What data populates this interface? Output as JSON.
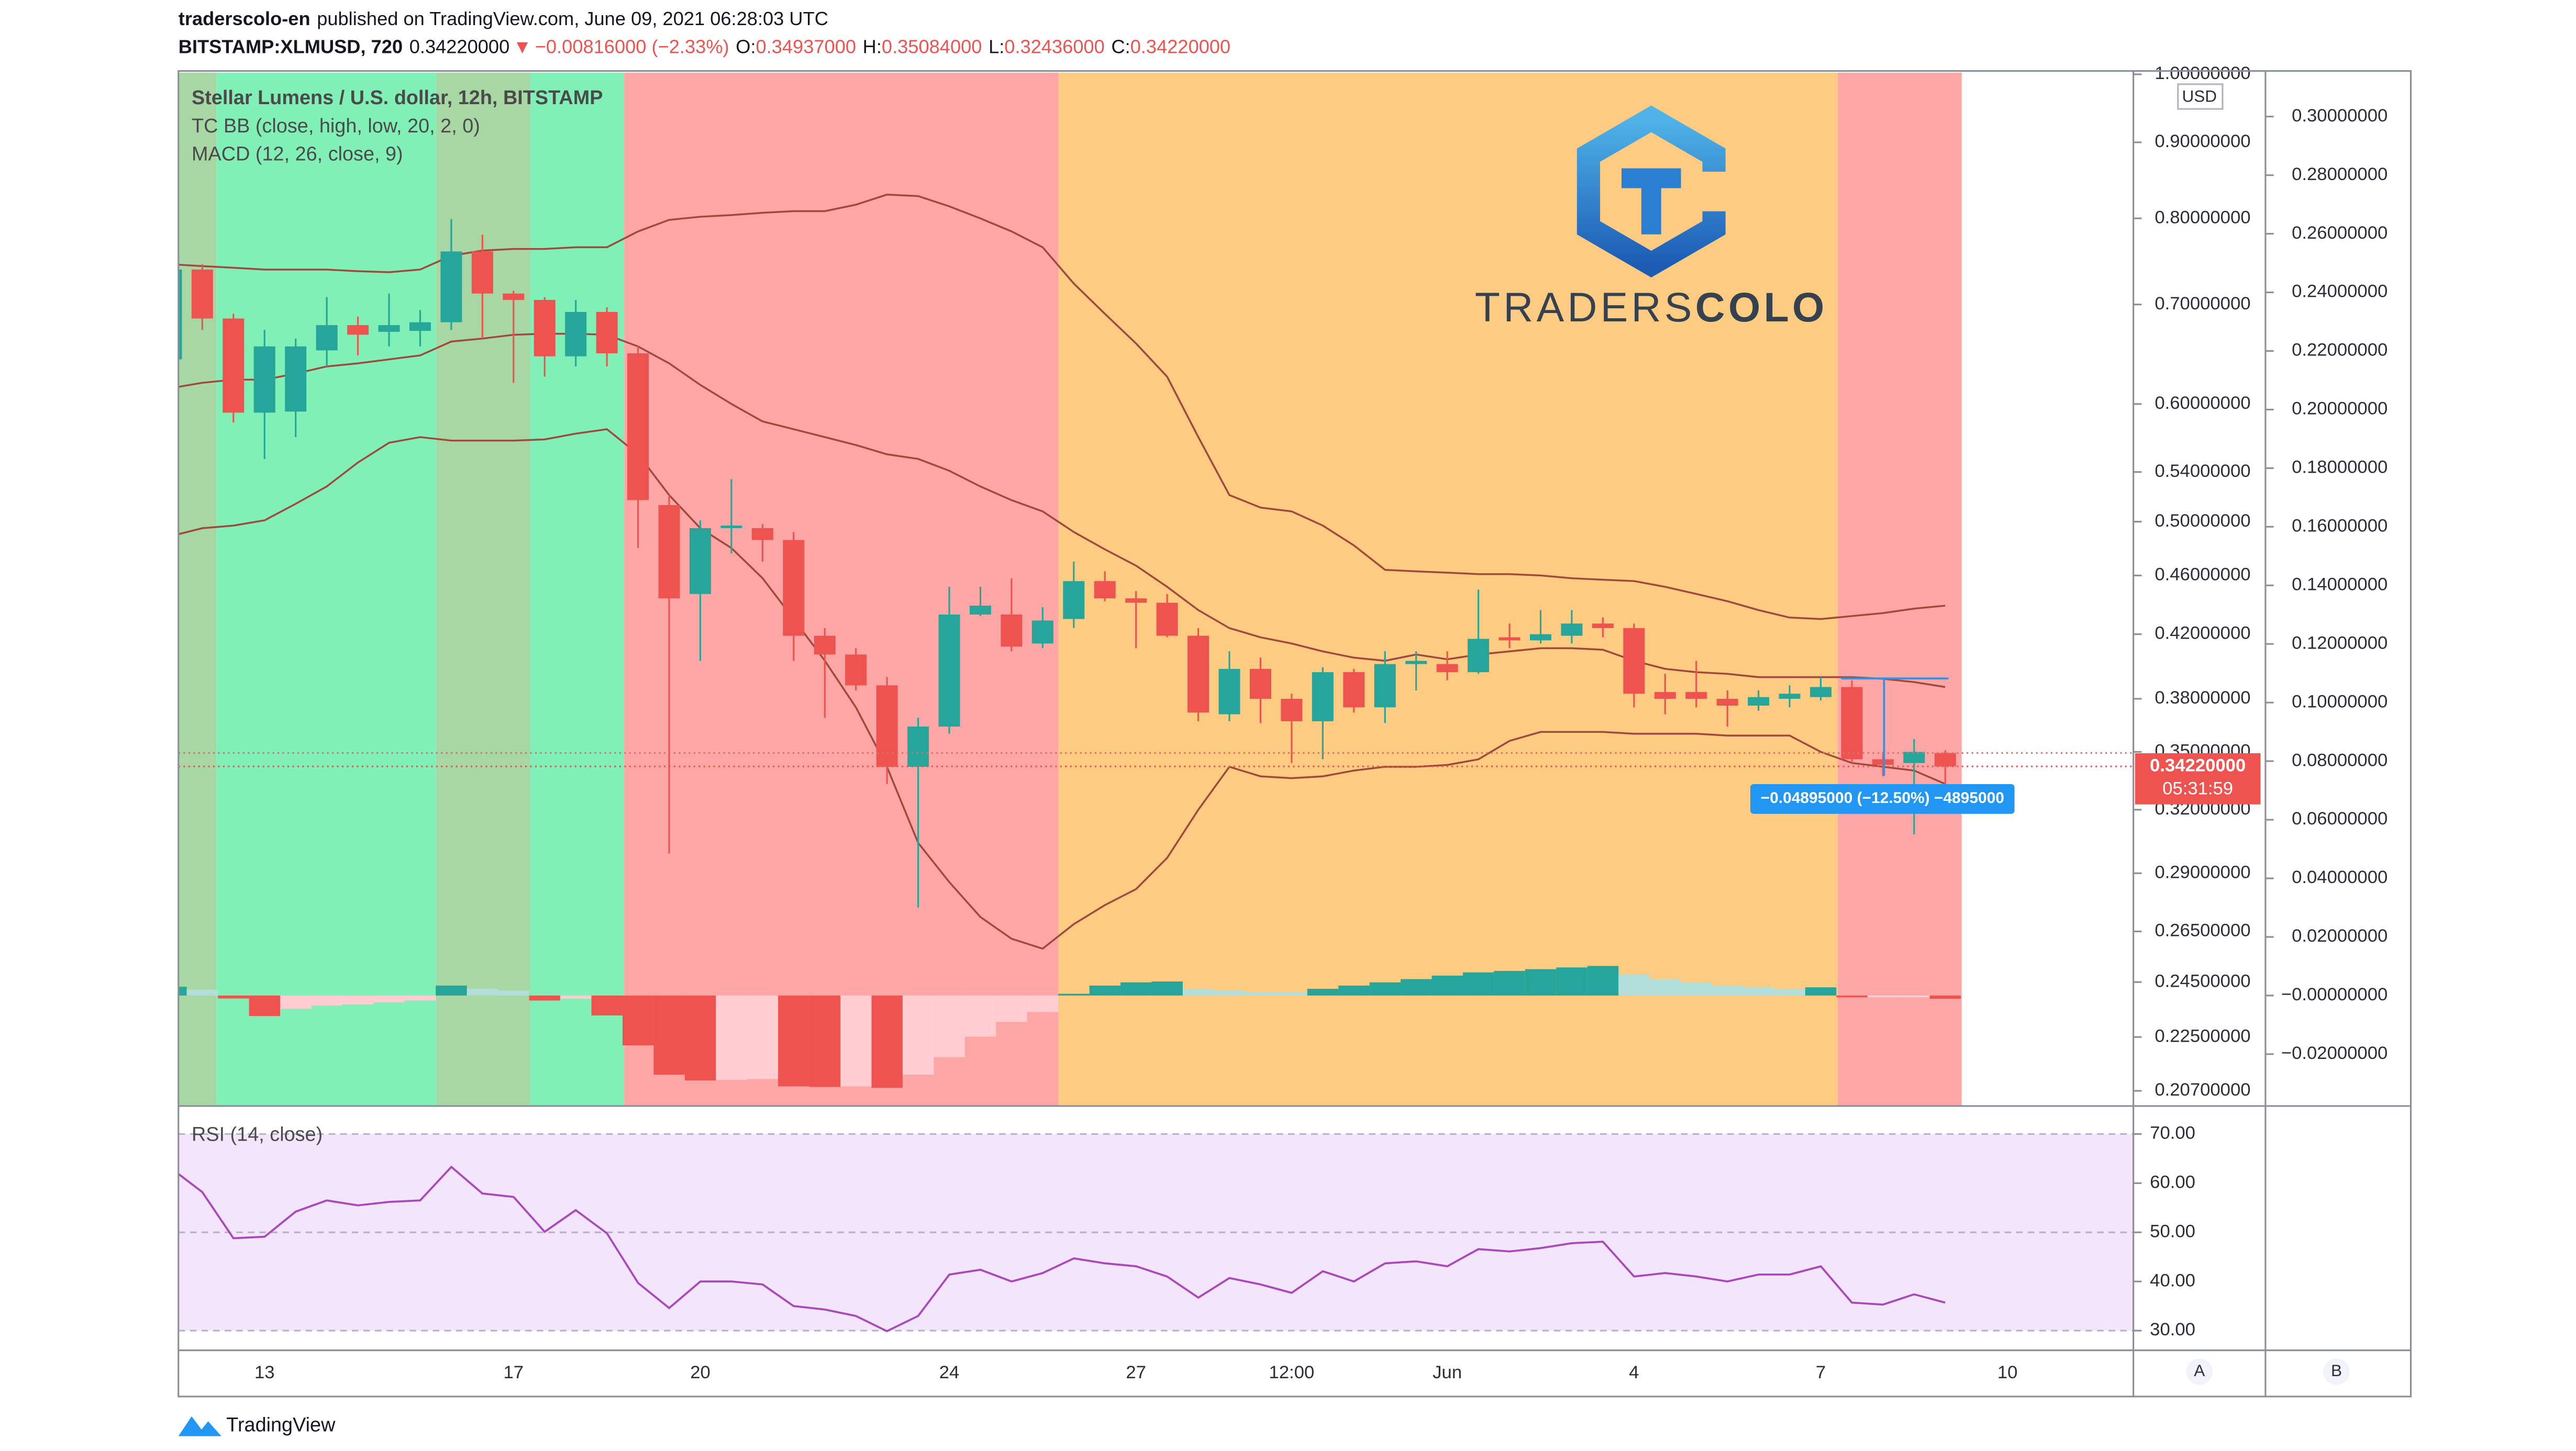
{
  "header": {
    "author": "traderscolo-en",
    "published": "published on TradingView.com, June 09, 2021 06:28:03 UTC",
    "symbol": "BITSTAMP:XLMUSD, 720",
    "last": "0.34220000",
    "arrow": "▼",
    "change": "−0.00816000 (−2.33%)",
    "ohlc": [
      {
        "key": "O:",
        "value": "0.34937000"
      },
      {
        "key": "H:",
        "value": "0.35084000"
      },
      {
        "key": "L:",
        "value": "0.32436000"
      },
      {
        "key": "C:",
        "value": "0.34220000"
      }
    ]
  },
  "watermark": {
    "part_a": "TRADERS",
    "part_b": "COLO"
  },
  "footer": {
    "brand": "TradingView"
  },
  "panes": [
    "A",
    "B"
  ],
  "chart_data": [
    {
      "type": "candlestick",
      "title": "Stellar Lumens / U.S. dollar, 12h, BITSTAMP",
      "indicators": [
        "TC BB (close, high, low, 20, 2, 0)",
        "MACD (12, 26, close, 9)"
      ],
      "currency": "USD",
      "log": true,
      "up_color": "#26a69a",
      "down_color": "#ef5350",
      "ylim": [
        0.2022,
        1.0026
      ],
      "yticks": [
        {
          "value": 1.0,
          "label": "1.00000000"
        },
        {
          "value": 0.9,
          "label": "0.90000000"
        },
        {
          "value": 0.8,
          "label": "0.80000000"
        },
        {
          "value": 0.7,
          "label": "0.70000000"
        },
        {
          "value": 0.6,
          "label": "0.60000000"
        },
        {
          "value": 0.54,
          "label": "0.54000000"
        },
        {
          "value": 0.5,
          "label": "0.50000000"
        },
        {
          "value": 0.46,
          "label": "0.46000000"
        },
        {
          "value": 0.42,
          "label": "0.42000000"
        },
        {
          "value": 0.38,
          "label": "0.38000000"
        },
        {
          "value": 0.35,
          "label": "0.35000000"
        },
        {
          "value": 0.32,
          "label": "0.32000000"
        },
        {
          "value": 0.29,
          "label": "0.29000000"
        },
        {
          "value": 0.265,
          "label": "0.26500000"
        },
        {
          "value": 0.245,
          "label": "0.24500000"
        },
        {
          "value": 0.225,
          "label": "0.22500000"
        },
        {
          "value": 0.207,
          "label": "0.20700000"
        }
      ],
      "open": [
        0.643,
        0.739,
        0.685,
        0.592,
        0.593,
        0.652,
        0.678,
        0.671,
        0.672,
        0.681,
        0.76,
        0.712,
        0.705,
        0.646,
        0.692,
        0.649,
        0.513,
        0.447,
        0.495,
        0.495,
        0.486,
        0.419,
        0.407,
        0.388,
        0.342,
        0.364,
        0.433,
        0.433,
        0.414,
        0.43,
        0.456,
        0.444,
        0.441,
        0.419,
        0.371,
        0.398,
        0.38,
        0.367,
        0.396,
        0.375,
        0.401,
        0.401,
        0.396,
        0.418,
        0.416,
        0.419,
        0.427,
        0.424,
        0.384,
        0.384,
        0.38,
        0.376,
        0.38,
        0.381,
        0.387,
        0.346,
        0.344,
        0.34937,
        null,
        null
      ],
      "high": [
        0.745,
        0.745,
        0.69,
        0.673,
        0.664,
        0.708,
        0.687,
        0.712,
        0.694,
        0.799,
        0.78,
        0.715,
        0.708,
        0.705,
        0.697,
        0.656,
        0.521,
        0.501,
        0.534,
        0.498,
        0.492,
        0.424,
        0.411,
        0.393,
        0.369,
        0.452,
        0.452,
        0.458,
        0.438,
        0.47,
        0.463,
        0.449,
        0.447,
        0.424,
        0.409,
        0.405,
        0.383,
        0.399,
        0.398,
        0.409,
        0.409,
        0.409,
        0.45,
        0.427,
        0.436,
        0.436,
        0.431,
        0.427,
        0.395,
        0.403,
        0.385,
        0.385,
        0.388,
        0.393,
        0.391,
        0.35,
        0.357,
        0.35084,
        null,
        null
      ],
      "low": [
        0.64,
        0.673,
        0.583,
        0.551,
        0.57,
        0.636,
        0.647,
        0.656,
        0.656,
        0.673,
        0.664,
        0.62,
        0.626,
        0.636,
        0.636,
        0.48,
        0.299,
        0.403,
        0.476,
        0.47,
        0.403,
        0.369,
        0.385,
        0.333,
        0.275,
        0.36,
        0.432,
        0.409,
        0.411,
        0.424,
        0.442,
        0.411,
        0.418,
        0.367,
        0.367,
        0.366,
        0.344,
        0.346,
        0.372,
        0.366,
        0.385,
        0.391,
        0.395,
        0.411,
        0.414,
        0.414,
        0.418,
        0.375,
        0.371,
        0.375,
        0.364,
        0.373,
        0.375,
        0.379,
        0.344,
        0.337,
        0.308,
        0.32436,
        null,
        null
      ],
      "close": [
        0.739,
        0.685,
        0.592,
        0.656,
        0.656,
        0.678,
        0.668,
        0.678,
        0.681,
        0.76,
        0.712,
        0.705,
        0.646,
        0.692,
        0.649,
        0.517,
        0.444,
        0.495,
        0.497,
        0.486,
        0.419,
        0.407,
        0.388,
        0.342,
        0.364,
        0.433,
        0.439,
        0.412,
        0.429,
        0.456,
        0.444,
        0.441,
        0.419,
        0.372,
        0.398,
        0.38,
        0.367,
        0.396,
        0.375,
        0.401,
        0.403,
        0.396,
        0.417,
        0.416,
        0.42,
        0.427,
        0.424,
        0.383,
        0.38,
        0.38,
        0.376,
        0.381,
        0.383,
        0.387,
        0.346,
        0.343,
        0.35,
        0.3422,
        null,
        null
      ],
      "series": [
        {
          "color": "#a0483c",
          "values": [
            0.745,
            0.743,
            0.741,
            0.739,
            0.739,
            0.739,
            0.737,
            0.736,
            0.739,
            0.755,
            0.761,
            0.763,
            0.763,
            0.765,
            0.765,
            0.784,
            0.798,
            0.802,
            0.804,
            0.807,
            0.809,
            0.809,
            0.817,
            0.83,
            0.828,
            0.815,
            0.8,
            0.784,
            0.765,
            0.723,
            0.69,
            0.659,
            0.626,
            0.57,
            0.521,
            0.511,
            0.508,
            0.497,
            0.482,
            0.464,
            0.463,
            0.462,
            0.461,
            0.461,
            0.46,
            0.458,
            0.457,
            0.456,
            0.452,
            0.447,
            0.442,
            0.436,
            0.431,
            0.43,
            0.432,
            0.434,
            0.437,
            0.439,
            null,
            null
          ]
        },
        {
          "color": "#a0483c",
          "values": [
            0.615,
            0.62,
            0.623,
            0.623,
            0.629,
            0.636,
            0.639,
            0.643,
            0.647,
            0.661,
            0.664,
            0.668,
            0.669,
            0.669,
            0.668,
            0.656,
            0.639,
            0.618,
            0.6,
            0.584,
            0.577,
            0.57,
            0.563,
            0.555,
            0.551,
            0.541,
            0.528,
            0.517,
            0.508,
            0.492,
            0.479,
            0.467,
            0.452,
            0.436,
            0.424,
            0.418,
            0.414,
            0.409,
            0.405,
            0.403,
            0.407,
            0.404,
            0.407,
            0.409,
            0.411,
            0.411,
            0.41,
            0.403,
            0.398,
            0.396,
            0.395,
            0.393,
            0.393,
            0.393,
            0.393,
            0.392,
            0.39,
            0.387,
            null,
            null
          ]
        },
        {
          "color": "#a0483c",
          "values": [
            0.489,
            0.495,
            0.497,
            0.501,
            0.514,
            0.528,
            0.548,
            0.565,
            0.57,
            0.567,
            0.567,
            0.567,
            0.568,
            0.573,
            0.577,
            0.555,
            0.521,
            0.495,
            0.48,
            0.458,
            0.43,
            0.403,
            0.375,
            0.342,
            0.304,
            0.286,
            0.271,
            0.262,
            0.258,
            0.268,
            0.276,
            0.283,
            0.297,
            0.32,
            0.342,
            0.337,
            0.336,
            0.337,
            0.34,
            0.342,
            0.342,
            0.343,
            0.346,
            0.356,
            0.361,
            0.361,
            0.361,
            0.36,
            0.36,
            0.36,
            0.359,
            0.359,
            0.359,
            0.35,
            0.344,
            0.342,
            0.34,
            0.333,
            null,
            null
          ]
        }
      ],
      "price_label": "0.34220000",
      "countdown": "05:31:59",
      "measure_label": "−0.04895000 (−12.50%) −4895000"
    },
    {
      "type": "histogram",
      "colors": {
        "grow_above": "#26a69a",
        "fall_above": "#b2dfdb",
        "grow_below": "#ffcdd2",
        "fall_below": "#ef5350"
      },
      "ylim": [
        -0.0377,
        0.315
      ],
      "yticks": [
        {
          "value": 0.3,
          "label": "0.30000000"
        },
        {
          "value": 0.28,
          "label": "0.28000000"
        },
        {
          "value": 0.26,
          "label": "0.26000000"
        },
        {
          "value": 0.24,
          "label": "0.24000000"
        },
        {
          "value": 0.22,
          "label": "0.22000000"
        },
        {
          "value": 0.2,
          "label": "0.20000000"
        },
        {
          "value": 0.18,
          "label": "0.18000000"
        },
        {
          "value": 0.16,
          "label": "0.16000000"
        },
        {
          "value": 0.14,
          "label": "0.14000000"
        },
        {
          "value": 0.12,
          "label": "0.12000000"
        },
        {
          "value": 0.1,
          "label": "0.10000000"
        },
        {
          "value": 0.08,
          "label": "0.08000000"
        },
        {
          "value": 0.06,
          "label": "0.06000000"
        },
        {
          "value": 0.04,
          "label": "0.04000000"
        },
        {
          "value": 0.02,
          "label": "0.02000000"
        },
        {
          "value": 0,
          "label": "−0.00000000"
        },
        {
          "value": -0.02,
          "label": "−0.02000000"
        }
      ],
      "values": [
        0.003,
        0.002,
        -0.001,
        -0.007,
        -0.0045,
        -0.0034,
        -0.003,
        -0.0023,
        -0.0017,
        0.0034,
        0.0023,
        0.0017,
        -0.0017,
        -0.0011,
        -0.0068,
        -0.017,
        -0.027,
        -0.029,
        -0.0288,
        -0.0285,
        -0.031,
        -0.0312,
        -0.031,
        -0.0315,
        -0.027,
        -0.021,
        -0.014,
        -0.009,
        -0.0056,
        0.0006,
        0.0034,
        0.0045,
        0.0048,
        0.0023,
        0.0017,
        0.0011,
        0.0011,
        0.0023,
        0.0034,
        0.0045,
        0.0056,
        0.0068,
        0.0079,
        0.0084,
        0.009,
        0.0096,
        0.0101,
        0.0073,
        0.0056,
        0.0045,
        0.0034,
        0.0028,
        0.0023,
        0.0028,
        -0.0006,
        -0.0006,
        -0.0006,
        -0.0011,
        null,
        null
      ]
    },
    {
      "type": "line",
      "title": "RSI (14, close)",
      "color": "#ab47bc",
      "band_color": "#f3e5fc",
      "levels": [
        70,
        50,
        30
      ],
      "ylim": [
        26.0,
        75.7
      ],
      "yticks": [
        {
          "value": 70,
          "label": "70.00"
        },
        {
          "value": 60,
          "label": "60.00"
        },
        {
          "value": 50,
          "label": "50.00"
        },
        {
          "value": 40,
          "label": "40.00"
        },
        {
          "value": 30,
          "label": "30.00"
        }
      ],
      "categories": [
        null,
        null,
        null,
        "13",
        null,
        null,
        null,
        null,
        null,
        null,
        null,
        "17",
        null,
        null,
        null,
        null,
        null,
        "20",
        null,
        null,
        null,
        null,
        null,
        null,
        null,
        "24",
        null,
        null,
        null,
        null,
        null,
        "27",
        null,
        null,
        null,
        null,
        "12:00",
        null,
        null,
        null,
        null,
        "Jun",
        null,
        null,
        null,
        null,
        null,
        "4",
        null,
        null,
        null,
        null,
        null,
        "7",
        null,
        null,
        null,
        null,
        null,
        "10"
      ],
      "values": [
        63,
        58.2,
        48.8,
        49.1,
        54.2,
        56.5,
        55.5,
        56.2,
        56.5,
        63.3,
        57.9,
        57.2,
        50.1,
        54.5,
        49.8,
        39.7,
        34.6,
        40.0,
        40.0,
        39.4,
        35.0,
        34.3,
        33.0,
        29.9,
        33.0,
        41.4,
        42.4,
        40.0,
        41.7,
        44.7,
        43.7,
        43.1,
        41.0,
        36.7,
        40.7,
        39.4,
        37.7,
        42.1,
        40.0,
        43.7,
        44.1,
        43.1,
        46.6,
        46.1,
        46.8,
        47.8,
        48.1,
        41.0,
        41.7,
        41.0,
        40.0,
        41.4,
        41.4,
        43.1,
        35.7,
        35.3,
        37.4,
        35.7,
        null,
        null
      ]
    }
  ]
}
